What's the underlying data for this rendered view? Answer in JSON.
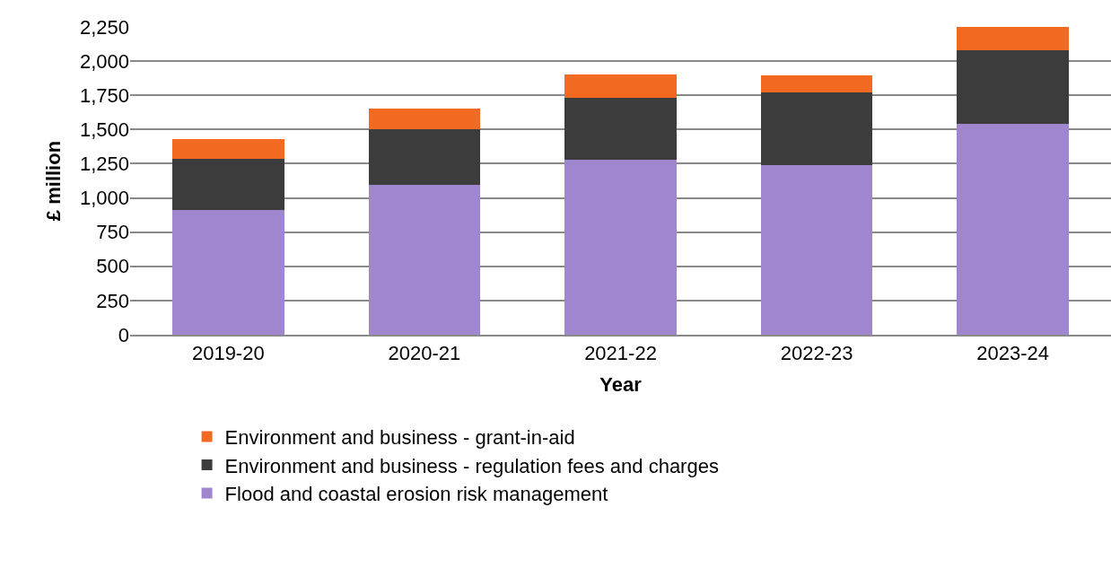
{
  "chart_data": {
    "type": "bar",
    "stacked": true,
    "xlabel": "Year",
    "ylabel": "£ million",
    "categories": [
      "2019-20",
      "2020-21",
      "2021-22",
      "2022-23",
      "2023-24"
    ],
    "series": [
      {
        "name": "Flood and coastal erosion risk management",
        "color": "#a085cf",
        "values": [
          910,
          1095,
          1280,
          1240,
          1540
        ]
      },
      {
        "name": "Environment and business - regulation fees and charges",
        "color": "#3c3c3c",
        "values": [
          375,
          405,
          455,
          530,
          540
        ]
      },
      {
        "name": "Environment and business - grant-in-aid",
        "color": "#f26a22",
        "values": [
          145,
          150,
          170,
          125,
          170
        ]
      }
    ],
    "ylim": [
      0,
      2250
    ],
    "yticks": [
      {
        "value": 0,
        "label": "0"
      },
      {
        "value": 250,
        "label": "250"
      },
      {
        "value": 500,
        "label": "500"
      },
      {
        "value": 750,
        "label": "750"
      },
      {
        "value": 1000,
        "label": "1,000"
      },
      {
        "value": 1250,
        "label": "1,250"
      },
      {
        "value": 1500,
        "label": "1,500"
      },
      {
        "value": 1750,
        "label": "1,750"
      },
      {
        "value": 2000,
        "label": "2,000"
      },
      {
        "value": 2250,
        "label": "2,250"
      }
    ],
    "grid": "y",
    "legend": "bottom"
  }
}
